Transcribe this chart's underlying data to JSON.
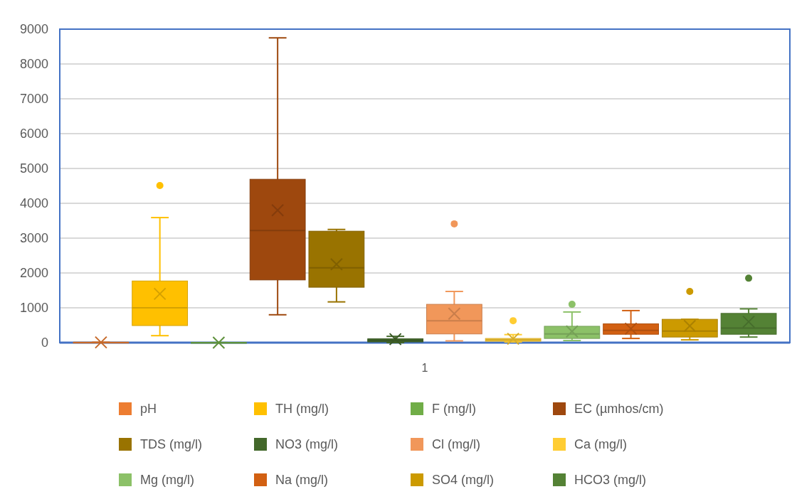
{
  "chart_data": {
    "type": "box",
    "categories": [
      "1"
    ],
    "ylim": [
      0,
      9000
    ],
    "yticks": [
      0,
      1000,
      2000,
      3000,
      4000,
      5000,
      6000,
      7000,
      8000,
      9000
    ],
    "grid": "y",
    "legend": "bottom",
    "series": [
      {
        "name": "pH",
        "color": "#ed7d31",
        "boxes": [
          {
            "low": 6.5,
            "q1": 7,
            "median": 7.5,
            "q3": 8,
            "high": 8.5,
            "mean": 7.5
          }
        ]
      },
      {
        "name": "TH (mg/l)",
        "color": "#ffc000",
        "boxes": [
          {
            "low": 200,
            "q1": 490,
            "median": 1000,
            "q3": 1770,
            "high": 3590,
            "mean": 1400,
            "outliers": [
              4510
            ]
          }
        ]
      },
      {
        "name": "F (mg/l)",
        "color": "#70ad47",
        "boxes": [
          {
            "low": 0.5,
            "q1": 0.8,
            "median": 1,
            "q3": 1.5,
            "high": 2.5,
            "mean": 1.2
          }
        ]
      },
      {
        "name": "EC (µmhos/cm)",
        "color": "#9e480e",
        "boxes": [
          {
            "low": 800,
            "q1": 1800,
            "median": 3220,
            "q3": 4690,
            "high": 8750,
            "mean": 3800
          }
        ]
      },
      {
        "name": "TDS (mg/l)",
        "color": "#997300",
        "boxes": [
          {
            "low": 1170,
            "q1": 1590,
            "median": 2150,
            "q3": 3200,
            "high": 3250,
            "mean": 2250
          }
        ]
      },
      {
        "name": "NO3 (mg/l)",
        "color": "#43682b",
        "boxes": [
          {
            "low": 0,
            "q1": 20,
            "median": 60,
            "q3": 110,
            "high": 180,
            "mean": 100
          }
        ]
      },
      {
        "name": "Cl (mg/l)",
        "color": "#f1975a",
        "boxes": [
          {
            "low": 50,
            "q1": 250,
            "median": 630,
            "q3": 1100,
            "high": 1470,
            "mean": 830,
            "outliers": [
              3410
            ]
          }
        ]
      },
      {
        "name": "Ca (mg/l)",
        "color": "#ffcd33",
        "boxes": [
          {
            "low": 20,
            "q1": 40,
            "median": 80,
            "q3": 120,
            "high": 230,
            "mean": 110,
            "outliers": [
              630
            ]
          }
        ]
      },
      {
        "name": "Mg (mg/l)",
        "color": "#8cc168",
        "boxes": [
          {
            "low": 60,
            "q1": 120,
            "median": 250,
            "q3": 470,
            "high": 880,
            "mean": 320,
            "outliers": [
              1100
            ]
          }
        ]
      },
      {
        "name": "Na (mg/l)",
        "color": "#d26012",
        "boxes": [
          {
            "low": 120,
            "q1": 240,
            "median": 350,
            "q3": 540,
            "high": 920,
            "mean": 400
          }
        ]
      },
      {
        "name": "SO4 (mg/l)",
        "color": "#cc9a00",
        "boxes": [
          {
            "low": 80,
            "q1": 160,
            "median": 330,
            "q3": 670,
            "high": 670,
            "mean": 480,
            "outliers": [
              1470
            ]
          }
        ]
      },
      {
        "name": "HCO3 (mg/l)",
        "color": "#548235",
        "boxes": [
          {
            "low": 160,
            "q1": 240,
            "median": 420,
            "q3": 840,
            "high": 970,
            "mean": 600,
            "outliers": [
              1850
            ]
          }
        ]
      }
    ]
  }
}
